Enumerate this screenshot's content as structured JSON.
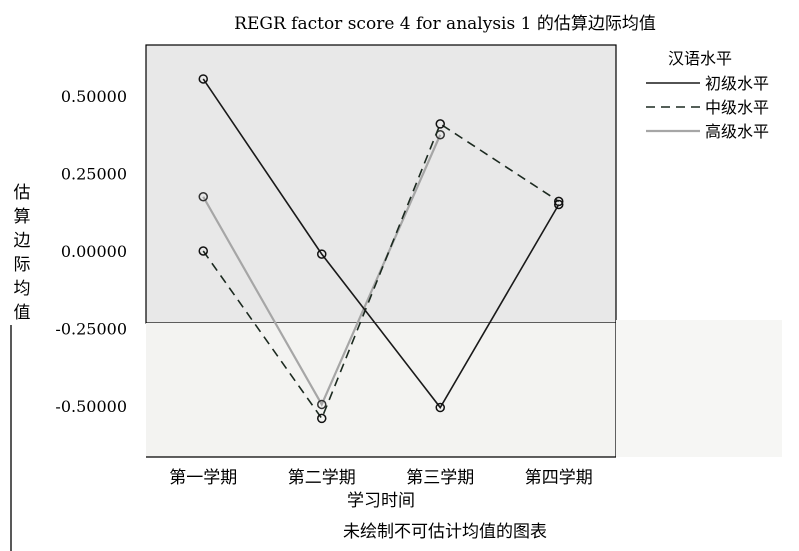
{
  "chart_data": {
    "type": "line",
    "title": "REGR factor score  4 for analysis 1 的估算边际均值",
    "xlabel": "学习时间",
    "ylabel": "估算边际均值",
    "categories": [
      "第一学期",
      "第二学期",
      "第三学期",
      "第四学期"
    ],
    "yticks": [
      "0.50000",
      "0.25000",
      "0.00000",
      "-0.25000",
      "-0.50000"
    ],
    "ylim": [
      -0.65,
      0.65
    ],
    "legend_title": "汉语水平",
    "legend_position": "right",
    "grid": false,
    "series": [
      {
        "name": "初级水平",
        "values": [
          0.555,
          -0.01,
          -0.505,
          0.15
        ],
        "color": "#1a1a1a",
        "dash": "solid"
      },
      {
        "name": "中级水平",
        "values": [
          0.0,
          -0.54,
          0.41,
          0.16
        ],
        "color": "#1c2a20",
        "dash": "dashed"
      },
      {
        "name": "高级水平",
        "values": [
          0.175,
          -0.495,
          0.375,
          null
        ],
        "color": "#a6a6a6",
        "dash": "solid"
      }
    ],
    "footnote": "未绘制不可估计均值的图表"
  }
}
